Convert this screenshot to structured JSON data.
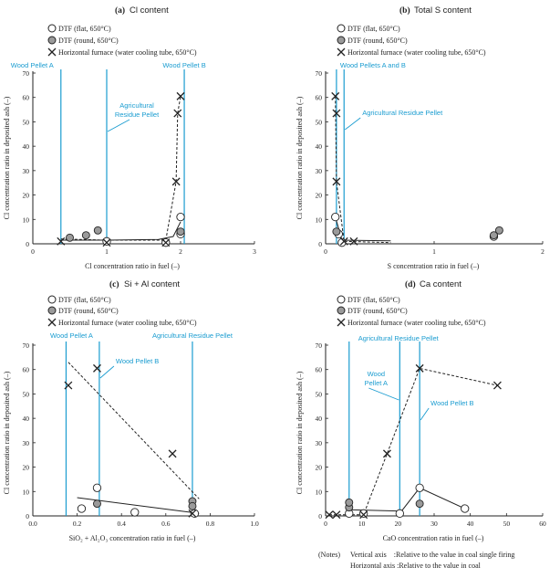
{
  "colors": {
    "cyan_line": "#1a9cd0",
    "grey_marker": "#9a9a9a",
    "axis": "#222222"
  },
  "legend": {
    "flat": "DTF (flat, 650°C)",
    "round": "DTF (round, 650°C)",
    "horizontal": "Horizontal furnace (water cooling tube, 650°C)"
  },
  "notes": {
    "label": "(Notes)",
    "vertical": "Vertical axis    :Relative to the value in coal single firing",
    "horizontal": "Horizontal axis :Relative to the value in coal"
  },
  "chart_data": [
    {
      "id": "a",
      "type": "scatter",
      "title_prefix": "(a)",
      "title": "Cl content",
      "xlabel": "Cl concentration ratio in fuel (–)",
      "ylabel": "Cl concentration ratio in deposited ash (–)",
      "xlim": [
        0,
        3
      ],
      "ylim": [
        0,
        70
      ],
      "xticks": [
        0,
        1,
        2,
        3
      ],
      "yticks": [
        0,
        10,
        20,
        30,
        40,
        50,
        60,
        70
      ],
      "reference_lines": [
        {
          "x": 0.38,
          "label": "Wood Pellet A"
        },
        {
          "x": 1.0,
          "label": "Agricultural Residue Pellet"
        },
        {
          "x": 2.05,
          "label": "Wood Pellet B"
        }
      ],
      "series": [
        {
          "name": "DTF (flat, 650°C)",
          "marker": "open-circle",
          "points": [
            [
              1.0,
              1.0
            ],
            [
              1.8,
              0.5
            ],
            [
              2.0,
              11.0
            ],
            [
              2.0,
              4.0
            ]
          ]
        },
        {
          "name": "DTF (round, 650°C)",
          "marker": "grey-circle",
          "points": [
            [
              0.5,
              2.5
            ],
            [
              0.72,
              3.5
            ],
            [
              0.88,
              5.5
            ],
            [
              2.0,
              5.0
            ]
          ]
        },
        {
          "name": "Horizontal furnace (water cooling tube, 650°C)",
          "marker": "x",
          "points": [
            [
              0.38,
              1.0
            ],
            [
              1.0,
              0.5
            ],
            [
              1.8,
              0.5
            ],
            [
              1.94,
              25.5
            ],
            [
              1.96,
              53.5
            ],
            [
              2.0,
              60.5
            ]
          ]
        }
      ],
      "trend_lines": [
        {
          "style": "solid",
          "points": [
            [
              0.38,
              1.5
            ],
            [
              1.0,
              1.5
            ],
            [
              1.7,
              1.8
            ],
            [
              1.9,
              3.0
            ],
            [
              2.0,
              9.0
            ]
          ]
        },
        {
          "style": "dashed",
          "points": [
            [
              0.38,
              2.0
            ],
            [
              1.0,
              1.5
            ],
            [
              1.8,
              1.5
            ],
            [
              1.94,
              25.5
            ],
            [
              1.96,
              53.5
            ],
            [
              2.0,
              60.5
            ]
          ]
        }
      ]
    },
    {
      "id": "b",
      "type": "scatter",
      "title_prefix": "(b)",
      "title": "Total S content",
      "xlabel": "S concentration ratio in fuel (–)",
      "ylabel": "Cl concentration ratio in deposited ash (–)",
      "xlim": [
        0,
        2
      ],
      "ylim": [
        0,
        70
      ],
      "xticks": [
        0,
        1,
        2
      ],
      "yticks": [
        0,
        10,
        20,
        30,
        40,
        50,
        60,
        70
      ],
      "reference_lines": [
        {
          "x": 0.1,
          "label": "Wood Pellets A and B"
        },
        {
          "x": 0.17,
          "label": "Agricultural Residue Pellet"
        }
      ],
      "series": [
        {
          "name": "DTF (flat, 650°C)",
          "marker": "open-circle",
          "points": [
            [
              0.09,
              11.0
            ],
            [
              0.12,
              4.0
            ],
            [
              0.15,
              0.5
            ],
            [
              1.55,
              3.0
            ]
          ]
        },
        {
          "name": "DTF (round, 650°C)",
          "marker": "grey-circle",
          "points": [
            [
              0.1,
              5.0
            ],
            [
              1.6,
              5.5
            ],
            [
              1.55,
              3.5
            ]
          ]
        },
        {
          "name": "Horizontal furnace (water cooling tube, 650°C)",
          "marker": "x",
          "points": [
            [
              0.09,
              60.5
            ],
            [
              0.1,
              53.5
            ],
            [
              0.1,
              25.5
            ],
            [
              0.17,
              1.0
            ],
            [
              0.26,
              1.0
            ]
          ]
        }
      ],
      "trend_lines": [
        {
          "style": "dashed",
          "points": [
            [
              0.09,
              60.5
            ],
            [
              0.1,
              25.5
            ],
            [
              0.17,
              1.0
            ],
            [
              0.6,
              0.5
            ]
          ]
        },
        {
          "style": "solid",
          "points": [
            [
              0.09,
              11.0
            ],
            [
              0.15,
              1.5
            ],
            [
              0.6,
              1.2
            ]
          ]
        }
      ]
    },
    {
      "id": "c",
      "type": "scatter",
      "title_prefix": "(c)",
      "title": "Si + Al content",
      "xlabel": "SiO₂ + Al₂O₃ concentration ratio in fuel (–)",
      "ylabel": "Cl concentration ratio in deposited ash (–)",
      "xlim": [
        0,
        1.0
      ],
      "ylim": [
        0,
        70
      ],
      "xticks": [
        0.0,
        0.2,
        0.4,
        0.6,
        0.8,
        1.0
      ],
      "yticks": [
        0,
        10,
        20,
        30,
        40,
        50,
        60,
        70
      ],
      "reference_lines": [
        {
          "x": 0.15,
          "label": "Wood Pellet A"
        },
        {
          "x": 0.3,
          "label": "Wood Pellet B"
        },
        {
          "x": 0.72,
          "label": "Agricultural Residue Pellet"
        }
      ],
      "series": [
        {
          "name": "DTF (flat, 650°C)",
          "marker": "open-circle",
          "points": [
            [
              0.22,
              3.0
            ],
            [
              0.29,
              11.5
            ],
            [
              0.46,
              1.5
            ],
            [
              0.73,
              1.0
            ]
          ]
        },
        {
          "name": "DTF (round, 650°C)",
          "marker": "grey-circle",
          "points": [
            [
              0.29,
              5.0
            ],
            [
              0.72,
              6.0
            ],
            [
              0.72,
              4.0
            ]
          ]
        },
        {
          "name": "Horizontal furnace (water cooling tube, 650°C)",
          "marker": "x",
          "points": [
            [
              0.16,
              53.5
            ],
            [
              0.29,
              60.5
            ],
            [
              0.63,
              25.5
            ],
            [
              0.72,
              1.0
            ]
          ]
        }
      ],
      "trend_lines": [
        {
          "style": "dashed",
          "points": [
            [
              0.16,
              63.0
            ],
            [
              0.75,
              7.0
            ]
          ]
        },
        {
          "style": "solid",
          "points": [
            [
              0.2,
              7.5
            ],
            [
              0.75,
              1.0
            ]
          ]
        }
      ]
    },
    {
      "id": "d",
      "type": "scatter",
      "title_prefix": "(d)",
      "title": "Ca content",
      "xlabel": "CaO concentration ratio in fuel (–)",
      "ylabel": "Cl concentration ratio in deposited ash (–)",
      "xlim": [
        0,
        60
      ],
      "ylim": [
        0,
        70
      ],
      "xticks": [
        0,
        10,
        20,
        30,
        40,
        50,
        60
      ],
      "yticks": [
        0,
        10,
        20,
        30,
        40,
        50,
        60,
        70
      ],
      "reference_lines": [
        {
          "x": 6.5,
          "label": "Agricultural Residue Pellet"
        },
        {
          "x": 20.5,
          "label": "Wood Pellet A"
        },
        {
          "x": 26,
          "label": "Wood Pellet B"
        }
      ],
      "series": [
        {
          "name": "DTF (flat, 650°C)",
          "marker": "open-circle",
          "points": [
            [
              6.5,
              1.0
            ],
            [
              10.5,
              1.0
            ],
            [
              20.5,
              1.0
            ],
            [
              26,
              11.5
            ],
            [
              38.5,
              3.0
            ]
          ]
        },
        {
          "name": "DTF (round, 650°C)",
          "marker": "grey-circle",
          "points": [
            [
              6.5,
              3.5
            ],
            [
              6.5,
              5.5
            ],
            [
              26,
              5.0
            ]
          ]
        },
        {
          "name": "Horizontal furnace (water cooling tube, 650°C)",
          "marker": "x",
          "points": [
            [
              1.0,
              0.5
            ],
            [
              3.0,
              0.5
            ],
            [
              10.5,
              0.5
            ],
            [
              17,
              25.5
            ],
            [
              26,
              60.5
            ],
            [
              47.5,
              53.5
            ]
          ]
        }
      ],
      "trend_lines": [
        {
          "style": "dashed",
          "points": [
            [
              1.0,
              0.5
            ],
            [
              10.5,
              0.5
            ],
            [
              17,
              25.5
            ],
            [
              26,
              60.5
            ],
            [
              47.5,
              53.5
            ]
          ]
        },
        {
          "style": "solid",
          "points": [
            [
              6.5,
              2.5
            ],
            [
              21,
              2.0
            ],
            [
              26,
              11.5
            ],
            [
              38.5,
              3.0
            ]
          ]
        }
      ]
    }
  ]
}
